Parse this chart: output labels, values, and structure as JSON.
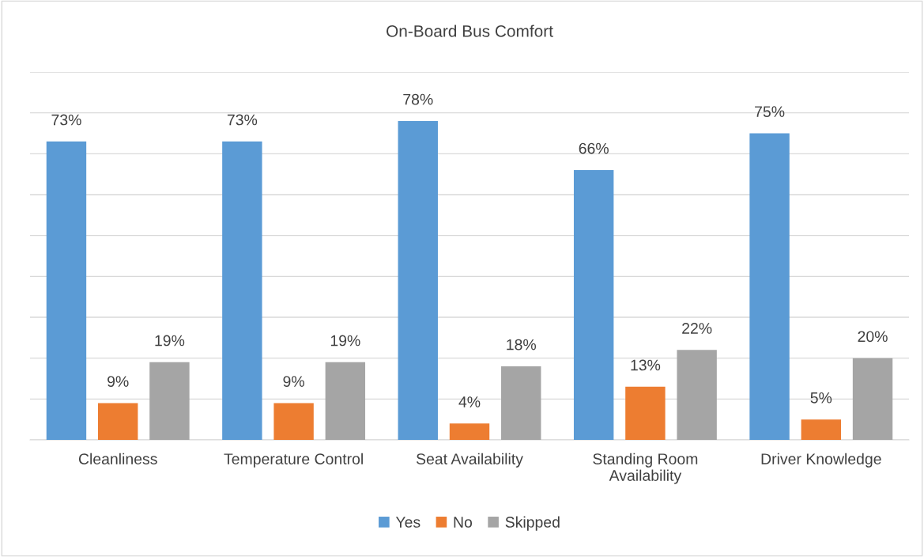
{
  "chart_data": {
    "type": "bar",
    "title": "On-Board Bus Comfort",
    "categories": [
      "Cleanliness",
      "Temperature Control",
      "Seat Availability",
      "Standing Room\nAvailability",
      "Driver Knowledge"
    ],
    "series": [
      {
        "name": "Yes",
        "color": "#5b9bd5",
        "values": [
          73,
          73,
          78,
          66,
          75
        ],
        "value_labels": [
          "73%",
          "73%",
          "78%",
          "66%",
          "75%"
        ]
      },
      {
        "name": "No",
        "color": "#ed7d31",
        "values": [
          9,
          9,
          4,
          13,
          5
        ],
        "value_labels": [
          "9%",
          "9%",
          "4%",
          "13%",
          "5%"
        ]
      },
      {
        "name": "Skipped",
        "color": "#a5a5a5",
        "values": [
          19,
          19,
          18,
          22,
          20
        ],
        "value_labels": [
          "19%",
          "19%",
          "18%",
          "22%",
          "20%"
        ]
      }
    ],
    "ylim": [
      0,
      90
    ],
    "yticks": [
      {
        "value": 0,
        "label": null
      },
      {
        "value": 10,
        "label": null
      },
      {
        "value": 20,
        "label": null
      },
      {
        "value": 30,
        "label": null
      },
      {
        "value": 40,
        "label": null
      },
      {
        "value": 50,
        "label": null
      },
      {
        "value": 60,
        "label": null
      },
      {
        "value": 70,
        "label": null
      },
      {
        "value": 80,
        "label": null
      },
      {
        "value": 90,
        "label": null
      }
    ],
    "grid": "y",
    "legend": "bottom"
  }
}
